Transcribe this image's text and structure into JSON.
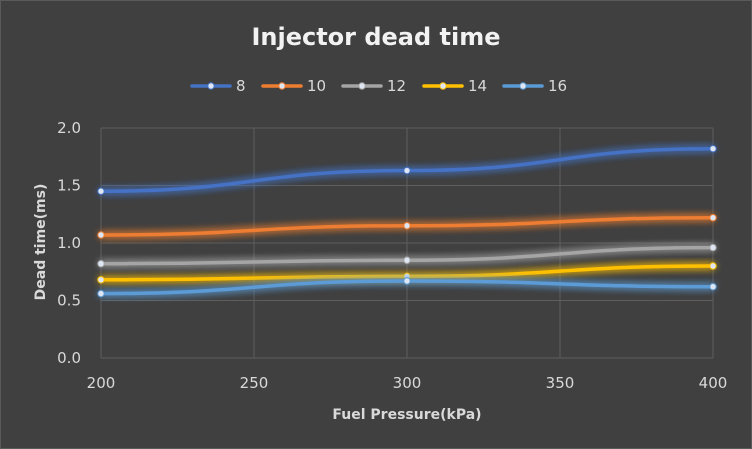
{
  "chart_data": {
    "type": "line",
    "title": "Injector dead time",
    "xlabel": "Fuel Pressure(kPa)",
    "ylabel": "Dead time(ms)",
    "x": [
      200,
      300,
      400
    ],
    "xlim": [
      200,
      400
    ],
    "ylim": [
      0,
      2
    ],
    "xticks": [
      "200",
      "250",
      "300",
      "350",
      "400"
    ],
    "yticks": [
      "0.0",
      "0.5",
      "1.0",
      "1.5",
      "2.0"
    ],
    "grid": true,
    "legend": "top",
    "series": [
      {
        "name": "8",
        "color": "#4472C4",
        "values": [
          1.45,
          1.63,
          1.82
        ]
      },
      {
        "name": "10",
        "color": "#ED7D31",
        "values": [
          1.07,
          1.15,
          1.22
        ]
      },
      {
        "name": "12",
        "color": "#A5A5A5",
        "values": [
          0.82,
          0.85,
          0.96
        ]
      },
      {
        "name": "14",
        "color": "#FFC000",
        "values": [
          0.68,
          0.71,
          0.8
        ]
      },
      {
        "name": "16",
        "color": "#5B9BD5",
        "values": [
          0.56,
          0.67,
          0.62
        ]
      }
    ]
  }
}
